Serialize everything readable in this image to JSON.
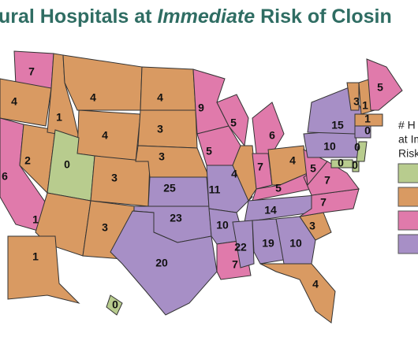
{
  "title": {
    "before": "ural Hospitals at",
    "emphasis": "Immediate",
    "after": "Risk of Closin"
  },
  "legend": {
    "lines": [
      "# H",
      "at Im",
      "Risk"
    ],
    "colors": [
      "#b8cc8e",
      "#d99a62",
      "#e07aab",
      "#a78fc6"
    ]
  },
  "states": [
    {
      "value": 7,
      "color": "#e07aab"
    },
    {
      "value": 4,
      "color": "#d99a62"
    },
    {
      "value": 6,
      "color": "#e07aab"
    },
    {
      "value": 2,
      "color": "#d99a62"
    },
    {
      "value": 1,
      "color": "#d99a62"
    },
    {
      "value": 4,
      "color": "#d99a62"
    },
    {
      "value": 4,
      "color": "#d99a62"
    },
    {
      "value": 0,
      "color": "#b8cc8e"
    },
    {
      "value": 1,
      "color": "#d99a62"
    },
    {
      "value": 3,
      "color": "#d99a62"
    },
    {
      "value": 3,
      "color": "#d99a62"
    },
    {
      "value": 4,
      "color": "#d99a62"
    },
    {
      "value": 3,
      "color": "#d99a62"
    },
    {
      "value": 3,
      "color": "#d99a62"
    },
    {
      "value": 25,
      "color": "#a78fc6"
    },
    {
      "value": 23,
      "color": "#a78fc6"
    },
    {
      "value": 20,
      "color": "#a78fc6"
    },
    {
      "value": 9,
      "color": "#e07aab"
    },
    {
      "value": 5,
      "color": "#e07aab"
    },
    {
      "value": 11,
      "color": "#a78fc6"
    },
    {
      "value": 10,
      "color": "#a78fc6"
    },
    {
      "value": 7,
      "color": "#e07aab"
    },
    {
      "value": 5,
      "color": "#e07aab"
    },
    {
      "value": 4,
      "color": "#d99a62"
    },
    {
      "value": 6,
      "color": "#e07aab"
    },
    {
      "value": 7,
      "color": "#e07aab"
    },
    {
      "value": 4,
      "color": "#d99a62"
    },
    {
      "value": 5,
      "color": "#e07aab"
    },
    {
      "value": 14,
      "color": "#a78fc6"
    },
    {
      "value": 22,
      "color": "#a78fc6"
    },
    {
      "value": 19,
      "color": "#a78fc6"
    },
    {
      "value": 10,
      "color": "#a78fc6"
    },
    {
      "value": 4,
      "color": "#d99a62"
    },
    {
      "value": 3,
      "color": "#d99a62"
    },
    {
      "value": 7,
      "color": "#e07aab"
    },
    {
      "value": 7,
      "color": "#e07aab"
    },
    {
      "value": 5,
      "color": "#e07aab"
    },
    {
      "value": 10,
      "color": "#a78fc6"
    },
    {
      "value": 15,
      "color": "#a78fc6"
    },
    {
      "value": 3,
      "color": "#d99a62"
    },
    {
      "value": 1,
      "color": "#d99a62"
    },
    {
      "value": 5,
      "color": "#e07aab"
    },
    {
      "value": 1,
      "color": "#d99a62"
    },
    {
      "value": 0,
      "color": "#a78fc6"
    },
    {
      "value": 0,
      "color": "#b8cc8e"
    },
    {
      "value": 0,
      "color": "#b8cc8e"
    },
    {
      "value": 0,
      "color": "#b8cc8e"
    },
    {
      "value": 1,
      "color": "#d99a62"
    },
    {
      "value": 0,
      "color": "#b8cc8e"
    }
  ]
}
